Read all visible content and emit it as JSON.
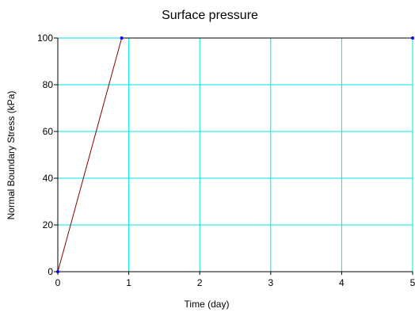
{
  "chart_data": {
    "type": "line",
    "title": "Surface pressure",
    "xlabel": "Time (day)",
    "ylabel": "Normal Boundary Stress (kPa)",
    "xlim": [
      0,
      5
    ],
    "ylim": [
      0,
      100
    ],
    "x_ticks": [
      "0",
      "1",
      "2",
      "3",
      "4",
      "5"
    ],
    "y_ticks": [
      "0",
      "20",
      "40",
      "60",
      "80",
      "100"
    ],
    "grid": true,
    "legend": "none",
    "series": [
      {
        "x": [
          0,
          0.9,
          5
        ],
        "y": [
          0,
          100,
          100
        ]
      }
    ],
    "colors": {
      "grid": "#00e5e5",
      "axis": "#000000",
      "line": "#000000",
      "ramp": "#8b0000",
      "points": "#0000ff"
    }
  }
}
